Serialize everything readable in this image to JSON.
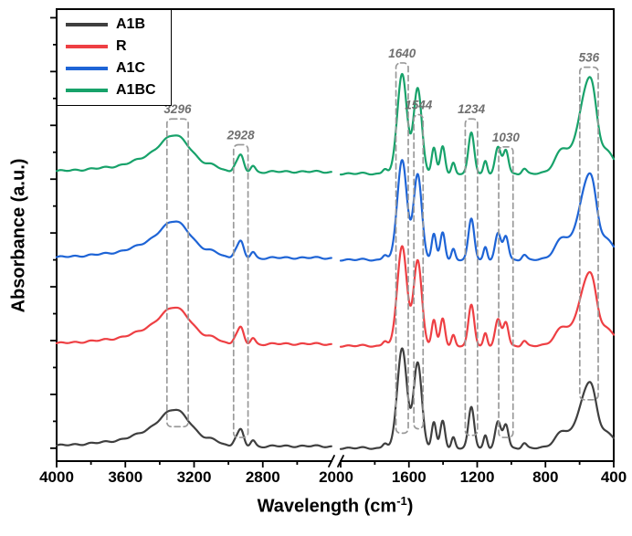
{
  "figure": {
    "xlabel_pre": "Wavelength (cm",
    "xlabel_sup": "-1",
    "xlabel_post": ")"
  },
  "chart_data": {
    "type": "line",
    "title": "",
    "xlabel": "Wavelength (cm⁻¹)",
    "ylabel": "Absorbance (a.u.)",
    "x_axis": {
      "reversed": true,
      "break": {
        "from": 2400,
        "to": 2000
      },
      "segments": [
        [
          4000,
          2400
        ],
        [
          2000,
          400
        ]
      ],
      "major_ticks": [
        4000,
        3600,
        3200,
        2800,
        2000,
        1600,
        1200,
        800,
        400
      ],
      "tick_labels": [
        "4000",
        "3600",
        "3200",
        "2800",
        "2000",
        "1600",
        "1200",
        "800",
        "400"
      ],
      "minor_ticks": [
        3800,
        3400,
        3000,
        2600,
        1800,
        1400,
        1000,
        600
      ]
    },
    "y_axis": {
      "label": "Absorbance (a.u.)",
      "tick_labels_shown": false,
      "range": [
        -0.12,
        4.08
      ],
      "major_tick_step": 0.5,
      "minor_tick_step": 0.25
    },
    "legend": {
      "position": "top-left",
      "entries": [
        "A1B",
        "R",
        "A1C",
        "A1BC"
      ]
    },
    "series": [
      {
        "name": "A1B",
        "color": "#3f3f3f",
        "offset": 0.0,
        "low_band_scale": 1.3
      },
      {
        "name": "R",
        "color": "#ee3f43",
        "offset": 0.95,
        "low_band_scale": 1.45
      },
      {
        "name": "A1C",
        "color": "#1e64d6",
        "offset": 1.75,
        "low_band_scale": 1.7
      },
      {
        "name": "A1BC",
        "color": "#17a26a",
        "offset": 2.55,
        "low_band_scale": 1.9
      }
    ],
    "peak_profile": [
      {
        "center": 3650,
        "sigma": 280,
        "amp": 0.05
      },
      {
        "center": 3430,
        "sigma": 130,
        "amp": 0.1
      },
      {
        "center": 3296,
        "sigma": 90,
        "amp": 0.27
      },
      {
        "center": 3080,
        "sigma": 45,
        "amp": 0.05
      },
      {
        "center": 2960,
        "sigma": 15,
        "amp": 0.06
      },
      {
        "center": 2928,
        "sigma": 17,
        "amp": 0.15
      },
      {
        "center": 2858,
        "sigma": 14,
        "amp": 0.06
      },
      {
        "center": 2600,
        "sigma": 300,
        "amp": 0.02
      },
      {
        "center": 1740,
        "sigma": 14,
        "amp": 0.05
      },
      {
        "center": 1640,
        "sigma": 28,
        "amp": 0.93
      },
      {
        "center": 1549,
        "sigma": 24,
        "amp": 0.8
      },
      {
        "center": 1454,
        "sigma": 13,
        "amp": 0.24
      },
      {
        "center": 1402,
        "sigma": 14,
        "amp": 0.26
      },
      {
        "center": 1340,
        "sigma": 11,
        "amp": 0.1
      },
      {
        "center": 1234,
        "sigma": 17,
        "amp": 0.38
      },
      {
        "center": 1152,
        "sigma": 11,
        "amp": 0.12
      },
      {
        "center": 1078,
        "sigma": 17,
        "amp": 0.24
      },
      {
        "center": 1032,
        "sigma": 15,
        "amp": 0.22
      },
      {
        "center": 925,
        "sigma": 14,
        "amp": 0.05
      },
      {
        "center": 700,
        "sigma": 45,
        "amp": 0.12
      },
      {
        "center": 560,
        "sigma": 48,
        "amp": 0.4
      },
      {
        "center": 520,
        "sigma": 26,
        "amp": 0.14
      },
      {
        "center": 432,
        "sigma": 38,
        "amp": 0.1
      }
    ],
    "annotated_peaks": [
      {
        "label": "3296",
        "x": 3296,
        "half_width": 62,
        "top": 3.06,
        "bottom": 0.2
      },
      {
        "label": "2928",
        "x": 2928,
        "half_width": 42,
        "top": 2.82,
        "bottom": 0.1
      },
      {
        "label": "1640",
        "x": 1640,
        "half_width": 36,
        "top": 3.58,
        "bottom": 0.14
      },
      {
        "label": "1544",
        "x": 1544,
        "half_width": 27,
        "top": 3.1,
        "bottom": 0.18
      },
      {
        "label": "1234",
        "x": 1234,
        "half_width": 36,
        "top": 3.06,
        "bottom": 0.12
      },
      {
        "label": "1030",
        "x": 1032,
        "half_width": 42,
        "top": 2.8,
        "bottom": 0.1
      },
      {
        "label": "536",
        "x": 545,
        "half_width": 54,
        "top": 3.54,
        "bottom": 0.45
      }
    ],
    "annotation_style": {
      "box_color": "#9a9a9a",
      "label_color": "#707070"
    }
  }
}
